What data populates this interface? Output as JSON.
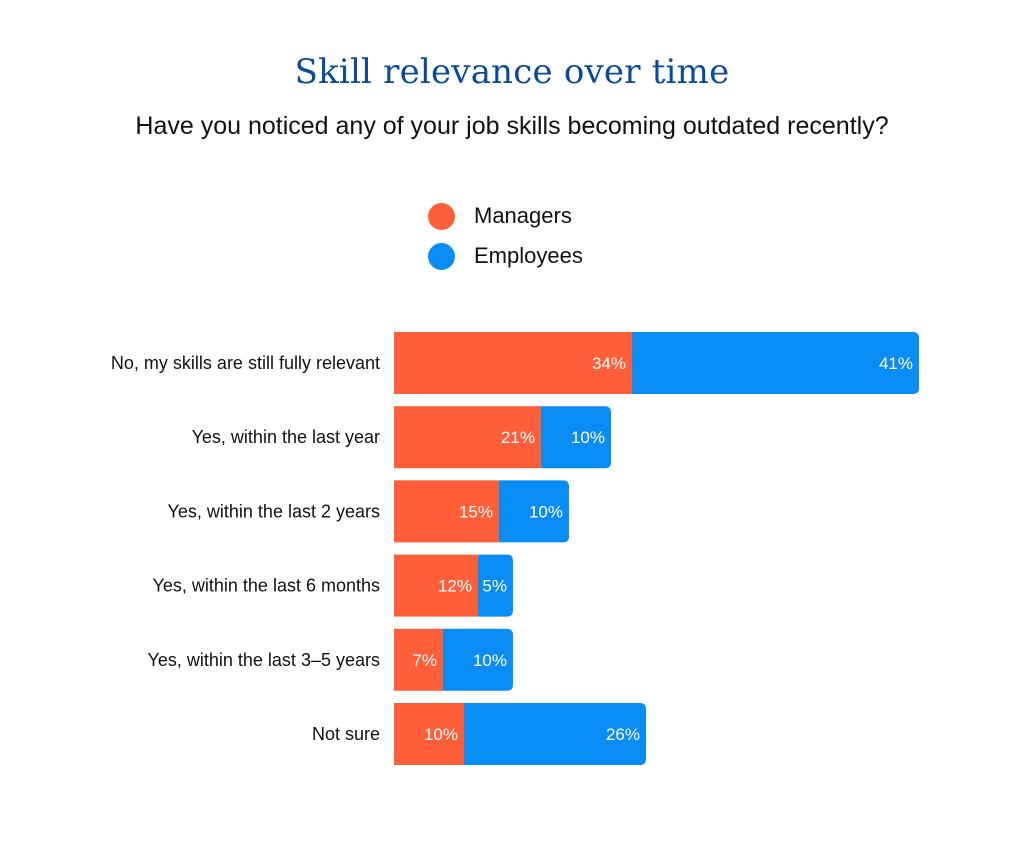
{
  "chart_data": {
    "type": "bar",
    "orientation": "horizontal",
    "stacked": true,
    "title": "Skill relevance over time",
    "subtitle": "Have you noticed any of your job skills becoming outdated recently?",
    "categories": [
      "No, my skills are still fully relevant",
      "Yes, within the last year",
      "Yes, within the last 2 years",
      "Yes, within the last 6 months",
      "Yes, within the last 3–5 years",
      "Not sure"
    ],
    "series": [
      {
        "name": "Managers",
        "color": "#ff5f38",
        "values": [
          34,
          21,
          15,
          12,
          7,
          10
        ],
        "labels": [
          "34%",
          "21%",
          "15%",
          "12%",
          "7%",
          "10%"
        ]
      },
      {
        "name": "Employees",
        "color": "#0a8cf5",
        "values": [
          41,
          10,
          10,
          5,
          10,
          26
        ],
        "labels": [
          "41%",
          "10%",
          "10%",
          "5%",
          "10%",
          "26%"
        ]
      }
    ],
    "unit": "%",
    "legend_position": "top-center",
    "grid": false
  }
}
